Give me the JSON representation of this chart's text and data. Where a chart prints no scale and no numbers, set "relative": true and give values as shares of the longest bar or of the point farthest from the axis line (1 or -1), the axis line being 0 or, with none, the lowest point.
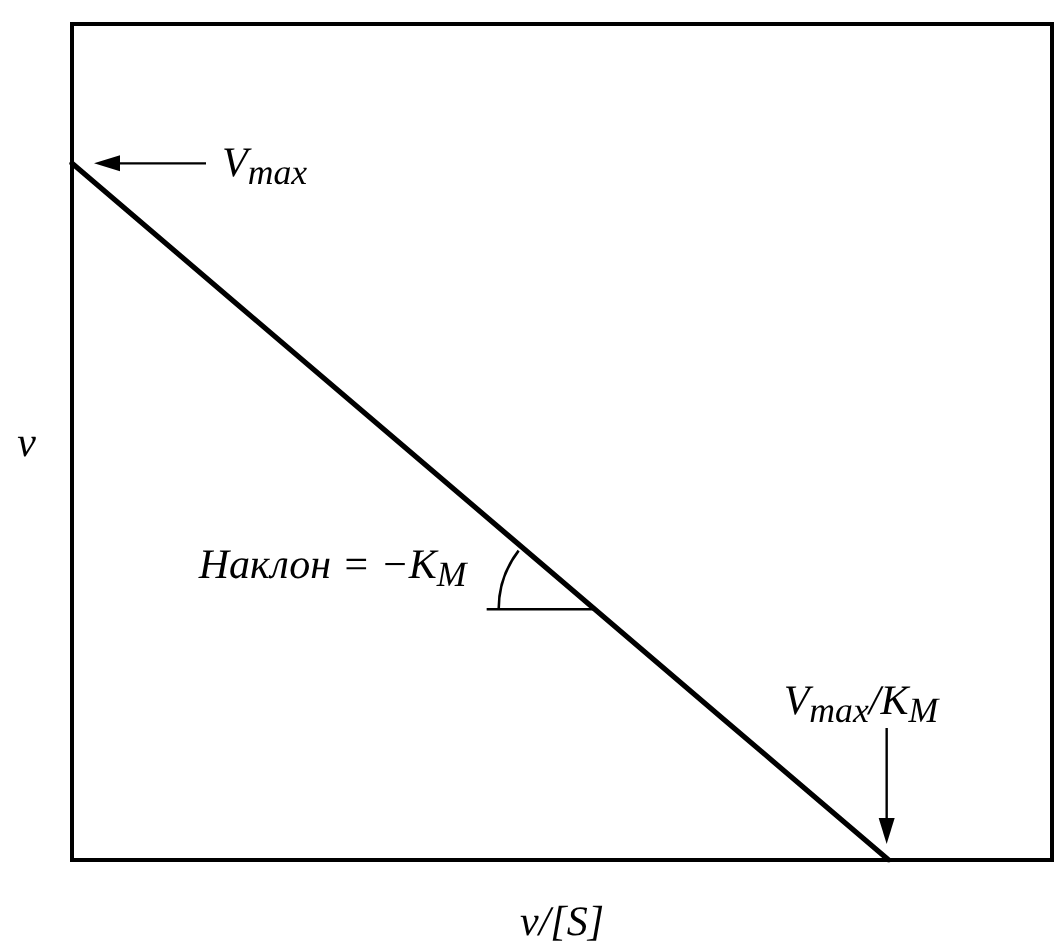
{
  "chart_data": {
    "type": "line",
    "xlabel": "v/[S]",
    "ylabel": "v",
    "categories": [
      null,
      null,
      null,
      null,
      null,
      null,
      null
    ],
    "values": [
      1,
      0.8,
      0.6,
      0.4,
      0.2,
      0,
      null
    ],
    "color": "#000000",
    "relative": true,
    "marker": "none",
    "line_style": "solid",
    "tick_labels": false,
    "annotations": [
      "V$_{max}$",
      "Наклон = −K$_{M}$",
      "V$_{max}$/K$_{M}$"
    ]
  }
}
